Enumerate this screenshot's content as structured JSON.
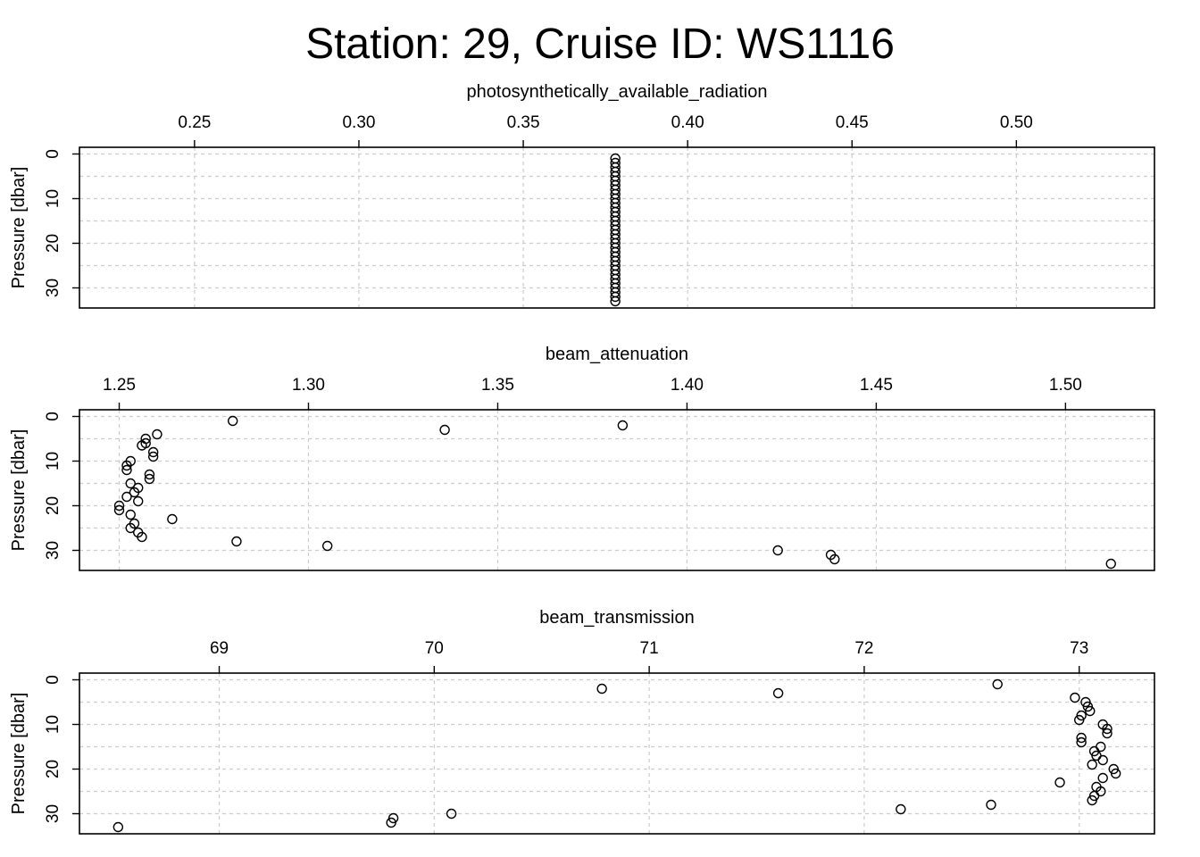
{
  "title": "Station: 29, Cruise ID: WS1116",
  "chart_data": [
    {
      "type": "scatter",
      "xlabel": "photosynthetically_available_radiation",
      "ylabel": "Pressure [dbar]",
      "xlim": [
        0.215,
        0.542
      ],
      "ylim": [
        34.5,
        -1.5
      ],
      "xticks": [
        "0.25",
        "0.30",
        "0.35",
        "0.40",
        "0.45",
        "0.50"
      ],
      "yticks": [
        "0",
        "10",
        "20",
        "30"
      ],
      "grid": true,
      "x": [
        0.378,
        0.378,
        0.378,
        0.378,
        0.378,
        0.378,
        0.378,
        0.378,
        0.378,
        0.378,
        0.378,
        0.378,
        0.378,
        0.378,
        0.378,
        0.378,
        0.378,
        0.378,
        0.378,
        0.378,
        0.378,
        0.378,
        0.378,
        0.378,
        0.378,
        0.378,
        0.378,
        0.378,
        0.378,
        0.378,
        0.378,
        0.378,
        0.378
      ],
      "y": [
        1,
        2,
        3,
        4,
        5,
        6,
        7,
        8,
        9,
        10,
        11,
        12,
        13,
        14,
        15,
        16,
        17,
        18,
        19,
        20,
        21,
        22,
        23,
        24,
        25,
        26,
        27,
        28,
        29,
        30,
        31,
        32,
        33
      ]
    },
    {
      "type": "scatter",
      "xlabel": "beam_attenuation",
      "ylabel": "Pressure [dbar]",
      "xlim": [
        1.2395,
        1.5235
      ],
      "ylim": [
        34.5,
        -1.5
      ],
      "xticks": [
        "1.25",
        "1.30",
        "1.35",
        "1.40",
        "1.45",
        "1.50"
      ],
      "yticks": [
        "0",
        "10",
        "20",
        "30"
      ],
      "grid": true,
      "x": [
        1.28,
        1.383,
        1.336,
        1.26,
        1.257,
        1.257,
        1.256,
        1.259,
        1.259,
        1.253,
        1.252,
        1.252,
        1.258,
        1.258,
        1.253,
        1.255,
        1.254,
        1.252,
        1.255,
        1.25,
        1.25,
        1.253,
        1.264,
        1.254,
        1.253,
        1.255,
        1.256,
        1.281,
        1.305,
        1.424,
        1.438,
        1.439,
        1.512
      ],
      "y": [
        1,
        2,
        3,
        4,
        5,
        6,
        6.5,
        8,
        9,
        10,
        11,
        12,
        13,
        14,
        15,
        16,
        17,
        18,
        19,
        20,
        21,
        22,
        23,
        24,
        25,
        26,
        27,
        28,
        29,
        30,
        31,
        32,
        33
      ]
    },
    {
      "type": "scatter",
      "xlabel": "beam_transmission",
      "ylabel": "Pressure [dbar]",
      "xlim": [
        68.35,
        73.35
      ],
      "ylim": [
        34.5,
        -1.5
      ],
      "xticks": [
        "69",
        "70",
        "71",
        "72",
        "73"
      ],
      "yticks": [
        "0",
        "10",
        "20",
        "30"
      ],
      "grid": true,
      "x": [
        72.62,
        70.78,
        71.6,
        72.98,
        73.03,
        73.04,
        73.05,
        73.01,
        73.0,
        73.11,
        73.13,
        73.13,
        73.01,
        73.01,
        73.1,
        73.07,
        73.08,
        73.11,
        73.06,
        73.16,
        73.17,
        73.11,
        72.91,
        73.08,
        73.1,
        73.07,
        73.06,
        72.59,
        72.17,
        70.08,
        69.81,
        69.8,
        68.53
      ],
      "y": [
        1,
        2,
        3,
        4,
        5,
        6,
        7,
        8,
        9,
        10,
        11,
        12,
        13,
        14,
        15,
        16,
        17,
        18,
        19,
        20,
        21,
        22,
        23,
        24,
        25,
        26,
        27,
        28,
        29,
        30,
        31,
        32,
        33
      ]
    }
  ]
}
